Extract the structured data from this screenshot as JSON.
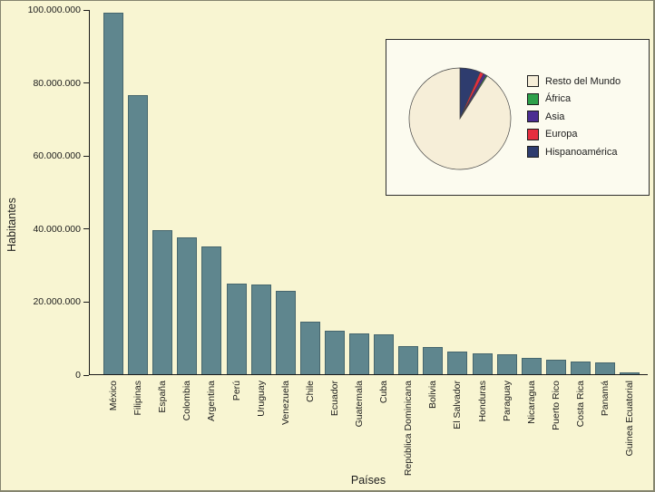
{
  "figure": {
    "background": "#f8f5d2",
    "inset_background": "#fcfbef",
    "text_color": "#1c1c1c"
  },
  "chart_data": [
    {
      "type": "bar",
      "title": "",
      "xlabel": "Países",
      "ylabel": "Habitantes",
      "ylim": [
        0,
        100000000
      ],
      "grid": false,
      "bar_color": "#5f868e",
      "bar_edge_color": "#46666d",
      "yticks": [
        {
          "value": 0,
          "label": "0"
        },
        {
          "value": 20000000,
          "label": "20.000.000"
        },
        {
          "value": 40000000,
          "label": "40.000.000"
        },
        {
          "value": 60000000,
          "label": "60.000.000"
        },
        {
          "value": 80000000,
          "label": "80.000.000"
        },
        {
          "value": 100000000,
          "label": "100.000.000"
        }
      ],
      "categories": [
        "México",
        "Filipinas",
        "España",
        "Colombia",
        "Argentina",
        "Perú",
        "Uruguay",
        "Venezuela",
        "Chile",
        "Ecuador",
        "Guatemala",
        "Cuba",
        "República Dominicana",
        "Bolivia",
        "El Salvador",
        "Honduras",
        "Paraguay",
        "Nicaragua",
        "Puerto Rico",
        "Costa Rica",
        "Panamá",
        "Guinea Ecuatorial"
      ],
      "values": [
        99000000,
        76500000,
        39500000,
        37500000,
        35000000,
        24800000,
        24500000,
        22800000,
        14500000,
        12000000,
        11200000,
        10800000,
        7800000,
        7500000,
        6200000,
        5800000,
        5500000,
        4500000,
        3900000,
        3500000,
        3200000,
        500000
      ]
    },
    {
      "type": "pie",
      "legend_position": "right",
      "slices": [
        {
          "label": "Resto del Mundo",
          "value": 91.0,
          "color": "#f6eed8"
        },
        {
          "label": "África",
          "value": 0.4,
          "color": "#2da04a"
        },
        {
          "label": "Asia",
          "value": 0.9,
          "color": "#4b2d92"
        },
        {
          "label": "Europa",
          "value": 1.2,
          "color": "#e62e3e"
        },
        {
          "label": "Hispanoamérica",
          "value": 6.5,
          "color": "#2e3c6e"
        }
      ],
      "draw_order": [
        "Hispanoamérica",
        "Europa",
        "Asia",
        "África",
        "Resto del Mundo"
      ],
      "start_angle_deg": 0,
      "direction": "clockwise"
    }
  ]
}
